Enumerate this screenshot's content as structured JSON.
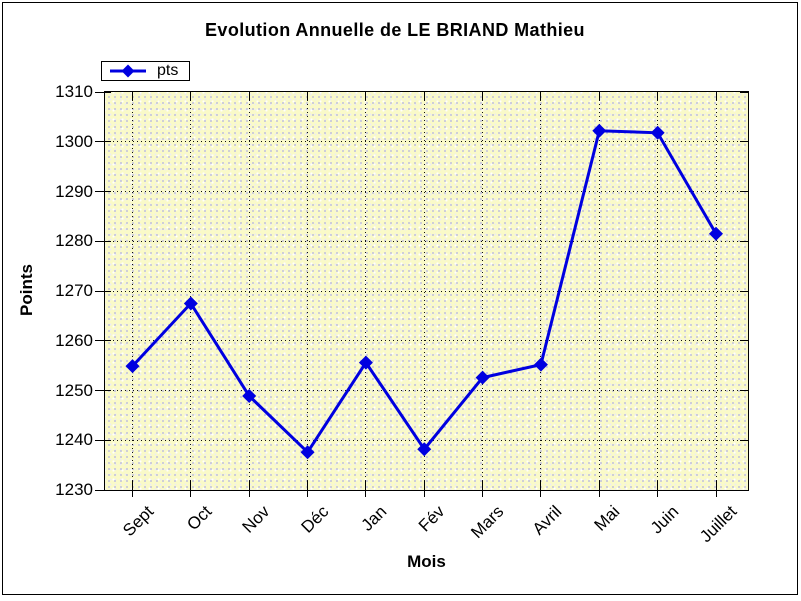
{
  "window": {
    "background_color": "#FFFFFF",
    "border_color": "#000000"
  },
  "chart_data": {
    "type": "line",
    "title": "Evolution Annuelle de LE BRIAND Mathieu",
    "xlabel": "Mois",
    "ylabel": "Points",
    "categories": [
      "Sept",
      "Oct",
      "Nov",
      "Déc",
      "Jan",
      "Fév",
      "Mars",
      "Avril",
      "Mai",
      "Juin",
      "Juillet"
    ],
    "series": [
      {
        "name": "pts",
        "color": "#0000E0",
        "marker": "diamond",
        "values": [
          1254.9,
          1267.5,
          1248.9,
          1237.6,
          1255.6,
          1238.2,
          1252.6,
          1255.2,
          1302.2,
          1301.8,
          1281.5
        ]
      }
    ],
    "ylim": [
      1230,
      1310
    ],
    "yticks": [
      1310,
      1300,
      1290,
      1280,
      1270,
      1260,
      1250,
      1240,
      1230
    ],
    "grid": "dotted",
    "grid_color": "#111111",
    "legend_position": "top-left",
    "plot_background": "#FAFAC8"
  },
  "legend": {
    "items": [
      {
        "label": "pts",
        "color": "#0000E0",
        "marker": "diamond-icon"
      }
    ]
  }
}
